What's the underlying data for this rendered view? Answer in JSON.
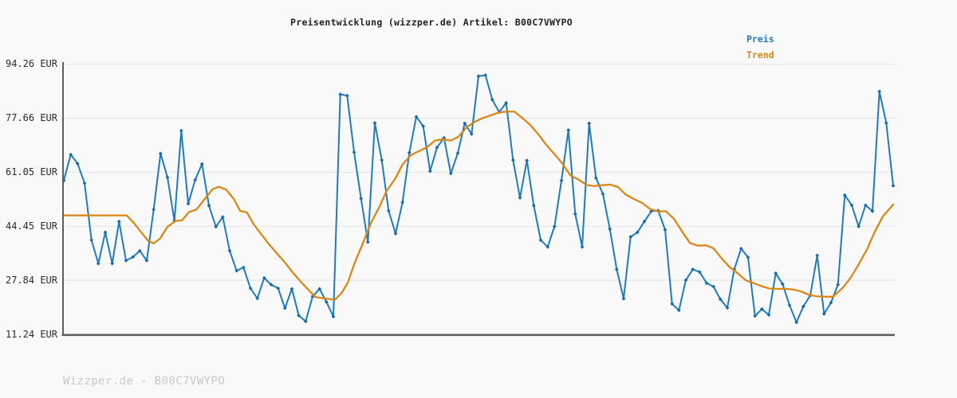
{
  "title": "Preisentwicklung (wizzper.de) Artikel: B00C7VWYPO",
  "legend": {
    "price_label": "Preis",
    "trend_label": "Trend"
  },
  "watermark": "Wizzper.de - B00C7VWYPO",
  "colors": {
    "background": "#f9f9f9",
    "price_line": "#1f7bbf",
    "price_marker": "#1a6aa8",
    "trend_line": "#dd8512",
    "gridline": "#e2e2e2",
    "axis_spine": "#5f5f5f",
    "title_text": "#222222",
    "tick_text": "#2b2b2b",
    "watermark_text": "#c8c8c8"
  },
  "y_axis": {
    "unit": "EUR",
    "tick_labels": [
      "94.26 EUR",
      "77.66 EUR",
      "61.05 EUR",
      "44.45 EUR",
      "27.84 EUR",
      "11.24 EUR"
    ],
    "tick_values": [
      94.26,
      77.66,
      61.05,
      44.45,
      27.84,
      11.24
    ]
  },
  "x_axis": {
    "tick_labels_visible": false
  },
  "chart_data": {
    "type": "line",
    "title": "Preisentwicklung (wizzper.de) Artikel: B00C7VWYPO",
    "ylabel": "EUR",
    "ylim": [
      11.24,
      94.26
    ],
    "grid": "horizontal",
    "legend_position": "top-right",
    "x_unit": "sample-index (dates not labeled)",
    "series": [
      {
        "name": "Preis",
        "color": "#1f7bbf",
        "marker": "diamond",
        "values": [
          58.5,
          66.5,
          63.7,
          57.7,
          40.2,
          33.0,
          42.6,
          33.0,
          45.9,
          33.9,
          35.0,
          36.9,
          33.9,
          49.6,
          66.8,
          59.5,
          46.1,
          73.8,
          51.4,
          58.7,
          63.6,
          50.8,
          44.3,
          47.3,
          36.9,
          30.8,
          31.8,
          25.4,
          22.3,
          28.6,
          26.5,
          25.4,
          19.3,
          25.2,
          17.0,
          15.2,
          22.9,
          25.2,
          21.2,
          16.7,
          85.0,
          84.6,
          67.2,
          53.0,
          39.6,
          76.2,
          64.8,
          49.2,
          42.2,
          51.8,
          67.1,
          78.1,
          75.2,
          61.4,
          68.7,
          71.6,
          60.7,
          66.9,
          76.1,
          72.8,
          90.6,
          90.9,
          83.4,
          79.5,
          82.4,
          64.8,
          53.2,
          64.7,
          50.8,
          40.2,
          38.1,
          44.4,
          58.5,
          74.0,
          48.2,
          38.1,
          76.1,
          59.3,
          54.4,
          43.6,
          31.2,
          22.2,
          41.2,
          42.6,
          45.9,
          49.1,
          49.3,
          43.4,
          20.6,
          18.6,
          27.9,
          31.2,
          30.4,
          27.0,
          25.9,
          22.0,
          19.4,
          31.2,
          37.6,
          34.9,
          16.9,
          19.0,
          17.2,
          30.0,
          26.7,
          20.2,
          14.9,
          19.8,
          23.2,
          35.5,
          17.5,
          21.0,
          26.5,
          54.0,
          50.9,
          44.4,
          50.9,
          49.1,
          85.9,
          76.2,
          56.9
        ]
      },
      {
        "name": "Trend",
        "color": "#dd8512",
        "marker": "none",
        "points": [
          [
            0,
            47.8
          ],
          [
            2.3,
            47.8
          ],
          [
            4.6,
            47.8
          ],
          [
            6.9,
            47.8
          ],
          [
            9.1,
            47.8
          ],
          [
            10.2,
            45.3
          ],
          [
            11.2,
            42.6
          ],
          [
            12.2,
            40.0
          ],
          [
            13.0,
            39.2
          ],
          [
            13.9,
            40.6
          ],
          [
            15.0,
            44.3
          ],
          [
            16.2,
            46.1
          ],
          [
            17.1,
            46.3
          ],
          [
            18.1,
            48.8
          ],
          [
            19.2,
            49.6
          ],
          [
            20.3,
            52.6
          ],
          [
            21.5,
            55.8
          ],
          [
            22.4,
            56.6
          ],
          [
            23.5,
            55.7
          ],
          [
            24.6,
            52.8
          ],
          [
            25.5,
            49.2
          ],
          [
            26.5,
            48.7
          ],
          [
            27.5,
            45.0
          ],
          [
            28.5,
            42.2
          ],
          [
            29.7,
            38.9
          ],
          [
            30.8,
            36.2
          ],
          [
            32.0,
            33.3
          ],
          [
            33.1,
            30.3
          ],
          [
            34.3,
            27.4
          ],
          [
            35.4,
            24.9
          ],
          [
            36.4,
            22.7
          ],
          [
            37.3,
            22.4
          ],
          [
            38.2,
            22.2
          ],
          [
            39.2,
            21.8
          ],
          [
            40.2,
            24.0
          ],
          [
            41.1,
            27.2
          ],
          [
            42.1,
            33.3
          ],
          [
            43.3,
            39.4
          ],
          [
            44.4,
            45.3
          ],
          [
            45.6,
            50.2
          ],
          [
            46.7,
            55.3
          ],
          [
            47.9,
            58.9
          ],
          [
            49.0,
            63.4
          ],
          [
            50.2,
            66.3
          ],
          [
            51.3,
            67.5
          ],
          [
            52.5,
            68.7
          ],
          [
            53.7,
            70.8
          ],
          [
            54.8,
            71.2
          ],
          [
            56.0,
            70.8
          ],
          [
            57.1,
            72.0
          ],
          [
            58.3,
            74.9
          ],
          [
            59.4,
            76.5
          ],
          [
            60.6,
            77.7
          ],
          [
            61.7,
            78.5
          ],
          [
            62.9,
            79.4
          ],
          [
            64.0,
            79.7
          ],
          [
            65.2,
            79.7
          ],
          [
            66.3,
            77.8
          ],
          [
            67.5,
            75.6
          ],
          [
            68.7,
            72.6
          ],
          [
            69.8,
            69.5
          ],
          [
            71.0,
            66.6
          ],
          [
            72.1,
            63.8
          ],
          [
            73.3,
            60.1
          ],
          [
            74.4,
            58.9
          ],
          [
            75.6,
            57.2
          ],
          [
            76.7,
            56.8
          ],
          [
            77.9,
            57.1
          ],
          [
            79.0,
            57.3
          ],
          [
            80.2,
            56.5
          ],
          [
            81.3,
            54.2
          ],
          [
            82.5,
            52.8
          ],
          [
            83.7,
            51.6
          ],
          [
            84.8,
            49.8
          ],
          [
            86.0,
            49.0
          ],
          [
            87.1,
            49.1
          ],
          [
            88.3,
            46.7
          ],
          [
            89.4,
            43.0
          ],
          [
            90.6,
            39.3
          ],
          [
            91.7,
            38.5
          ],
          [
            92.9,
            38.6
          ],
          [
            94.0,
            37.7
          ],
          [
            95.2,
            34.5
          ],
          [
            96.3,
            32.0
          ],
          [
            97.5,
            30.0
          ],
          [
            98.7,
            27.8
          ],
          [
            99.8,
            27.0
          ],
          [
            101.0,
            26.0
          ],
          [
            102.1,
            25.3
          ],
          [
            103.3,
            25.2
          ],
          [
            104.4,
            25.2
          ],
          [
            105.6,
            25.0
          ],
          [
            106.7,
            24.4
          ],
          [
            107.9,
            23.3
          ],
          [
            109.0,
            22.9
          ],
          [
            110.2,
            22.8
          ],
          [
            111.3,
            22.8
          ],
          [
            112.7,
            25.5
          ],
          [
            113.9,
            28.8
          ],
          [
            115.0,
            32.8
          ],
          [
            116.2,
            37.3
          ],
          [
            117.3,
            42.6
          ],
          [
            118.5,
            47.5
          ],
          [
            119.7,
            50.4
          ],
          [
            120,
            51.2
          ]
        ]
      }
    ]
  }
}
